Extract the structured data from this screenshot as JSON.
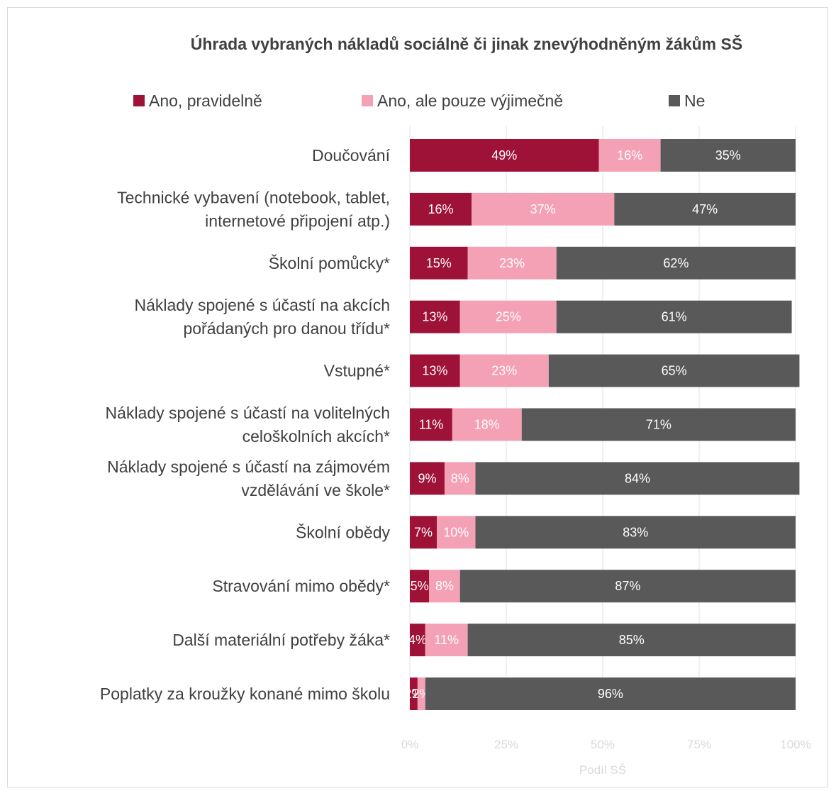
{
  "chart_data": {
    "type": "bar",
    "orientation": "horizontal",
    "stacked": true,
    "title": "Úhrada vybraných nákladů sociálně či jinak znevýhodněným žákům SŠ",
    "xlabel": "Podíl SŠ",
    "ylabel": "",
    "xlim": [
      0,
      100
    ],
    "x_ticks": [
      "0%",
      "25%",
      "50%",
      "75%",
      "100%"
    ],
    "grid": true,
    "legend_position": "top",
    "categories": [
      [
        "Doučování"
      ],
      [
        "Technické vybavení (notebook, tablet,",
        "internetové připojení atp.)"
      ],
      [
        "Školní pomůcky*"
      ],
      [
        "Náklady spojené s účastí na akcích",
        "pořádaných pro danou třídu*"
      ],
      [
        "Vstupné*"
      ],
      [
        "Náklady spojené s účastí na volitelných",
        "celoškolních akcích*"
      ],
      [
        "Náklady spojené s účastí na zájmovém",
        "vzdělávání ve škole*"
      ],
      [
        "Školní obědy"
      ],
      [
        "Stravování mimo obědy*"
      ],
      [
        "Další materiální potřeby žáka*"
      ],
      [
        "Poplatky za kroužky konané mimo školu"
      ]
    ],
    "series": [
      {
        "name": "Ano, pravidelně",
        "color": "#9e1238",
        "label_color": "#ffffff",
        "values": [
          49,
          16,
          15,
          13,
          13,
          11,
          9,
          7,
          5,
          4,
          2
        ],
        "labels": [
          "49%",
          "16%",
          "15%",
          "13%",
          "13%",
          "11%",
          "9%",
          "7%",
          "5%",
          "4%",
          "2%"
        ]
      },
      {
        "name": "Ano, ale pouze výjimečně",
        "color": "#f4a1b5",
        "label_color": "#ffffff",
        "values": [
          16,
          37,
          23,
          25,
          23,
          18,
          8,
          10,
          8,
          11,
          2
        ],
        "labels": [
          "16%",
          "37%",
          "23%",
          "25%",
          "23%",
          "18%",
          "8%",
          "10%",
          "8%",
          "11%",
          "2%"
        ]
      },
      {
        "name": "Ne",
        "color": "#595959",
        "label_color": "#ffffff",
        "values": [
          35,
          47,
          62,
          61,
          65,
          71,
          84,
          83,
          87,
          85,
          96
        ],
        "labels": [
          "35%",
          "47%",
          "62%",
          "61%",
          "65%",
          "71%",
          "84%",
          "83%",
          "87%",
          "85%",
          "96%"
        ]
      }
    ]
  }
}
